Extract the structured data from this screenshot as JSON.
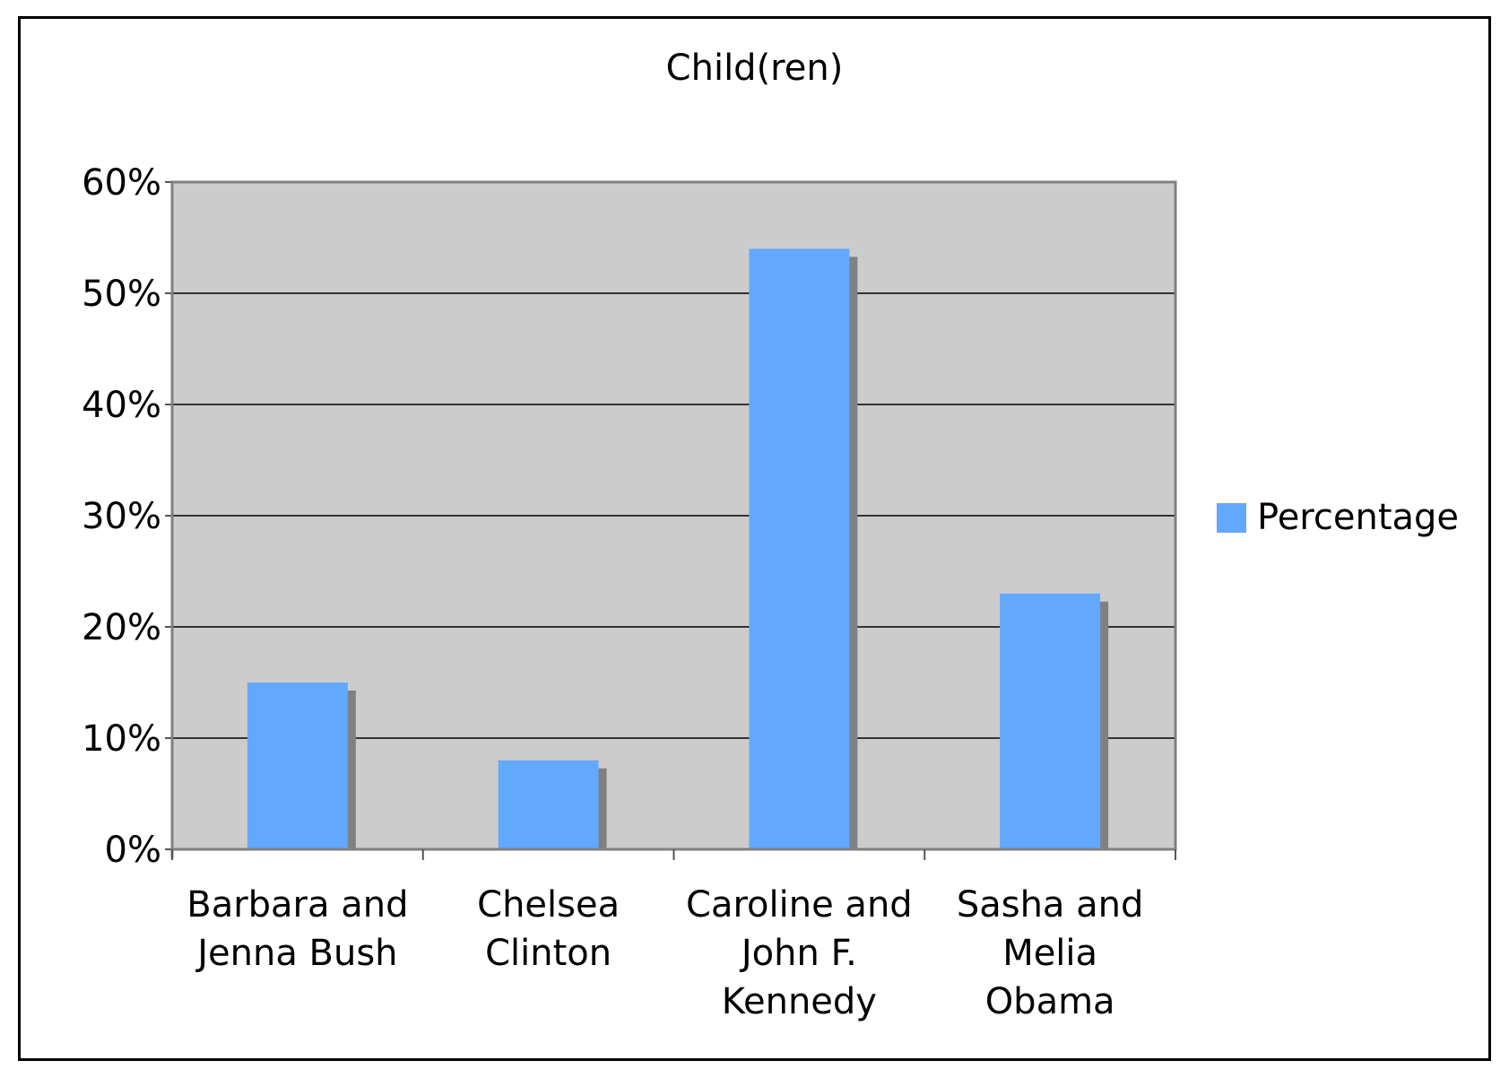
{
  "chart_data": {
    "type": "bar",
    "title": "Child(ren)",
    "categories": [
      [
        "Barbara and",
        "Jenna Bush"
      ],
      [
        "Chelsea",
        "Clinton"
      ],
      [
        "Caroline and",
        "John F.",
        "Kennedy"
      ],
      [
        "Sasha and",
        "Melia",
        "Obama"
      ]
    ],
    "series": [
      {
        "name": "Percentage",
        "values": [
          15,
          8,
          54,
          23
        ],
        "color": "#63a8ff"
      }
    ],
    "ylim": [
      0,
      60
    ],
    "yticks": [
      "0%",
      "10%",
      "20%",
      "30%",
      "40%",
      "50%",
      "60%"
    ],
    "grid": true,
    "plot_background": "#cccccc",
    "shadow_color": "#808080",
    "legend_position": "right"
  }
}
